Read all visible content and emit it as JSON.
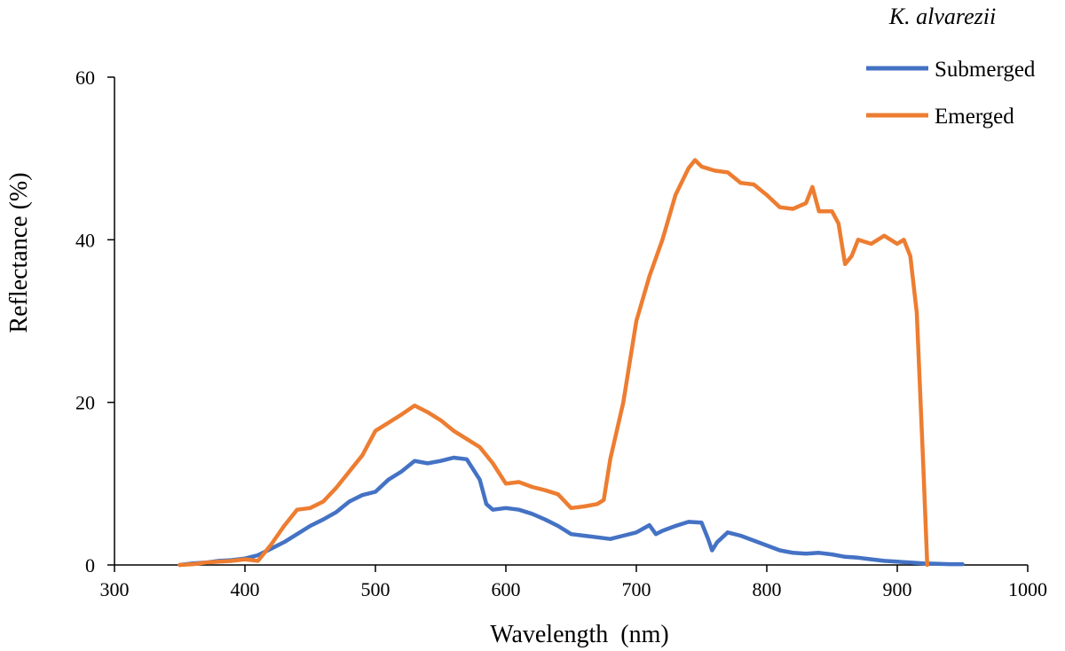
{
  "chart_data": {
    "type": "line",
    "title": "",
    "xlabel": "Wavelength  (nm)",
    "ylabel": "Reflectance (%)",
    "xlim": [
      300,
      1000
    ],
    "ylim": [
      0,
      60
    ],
    "xticks": [
      "300",
      "400",
      "500",
      "600",
      "700",
      "800",
      "900",
      "1000"
    ],
    "yticks": [
      "0",
      "20",
      "40",
      "60"
    ],
    "grid": false,
    "legend": {
      "title": "K. alvarezii",
      "position": "top-right"
    },
    "series": [
      {
        "name": "Submerged",
        "color": "#4472C4",
        "x": [
          350,
          360,
          370,
          380,
          390,
          400,
          410,
          420,
          430,
          440,
          450,
          460,
          470,
          480,
          490,
          500,
          510,
          520,
          530,
          540,
          550,
          560,
          570,
          580,
          585,
          590,
          600,
          610,
          620,
          630,
          640,
          650,
          660,
          670,
          680,
          690,
          700,
          710,
          715,
          720,
          730,
          740,
          750,
          755,
          758,
          762,
          770,
          780,
          790,
          800,
          810,
          820,
          830,
          840,
          850,
          860,
          870,
          880,
          890,
          900,
          910,
          920,
          930,
          940,
          950
        ],
        "y": [
          0,
          0.2,
          0.3,
          0.5,
          0.6,
          0.8,
          1.2,
          2.0,
          2.8,
          3.8,
          4.8,
          5.6,
          6.5,
          7.8,
          8.6,
          9.0,
          10.5,
          11.5,
          12.8,
          12.5,
          12.8,
          13.2,
          13.0,
          10.5,
          7.5,
          6.8,
          7.0,
          6.8,
          6.3,
          5.6,
          4.8,
          3.8,
          3.6,
          3.4,
          3.2,
          3.6,
          4.0,
          4.9,
          3.8,
          4.2,
          4.8,
          5.3,
          5.2,
          3.2,
          1.8,
          2.8,
          4.0,
          3.6,
          3.0,
          2.4,
          1.8,
          1.5,
          1.4,
          1.5,
          1.3,
          1.0,
          0.9,
          0.7,
          0.5,
          0.4,
          0.3,
          0.2,
          0.15,
          0.1,
          0.1
        ]
      },
      {
        "name": "Emerged",
        "color": "#ED7D31",
        "x": [
          350,
          360,
          370,
          380,
          390,
          400,
          405,
          410,
          420,
          430,
          440,
          450,
          460,
          470,
          480,
          490,
          500,
          510,
          520,
          530,
          540,
          550,
          560,
          570,
          580,
          590,
          600,
          610,
          620,
          630,
          640,
          650,
          660,
          670,
          675,
          680,
          690,
          700,
          710,
          720,
          730,
          740,
          745,
          750,
          760,
          770,
          780,
          790,
          800,
          810,
          820,
          830,
          835,
          840,
          850,
          855,
          860,
          865,
          870,
          880,
          890,
          900,
          905,
          910,
          915,
          920,
          923
        ],
        "y": [
          0,
          0.1,
          0.3,
          0.4,
          0.5,
          0.7,
          0.6,
          0.5,
          2.5,
          4.8,
          6.8,
          7.0,
          7.8,
          9.5,
          11.5,
          13.5,
          16.5,
          17.5,
          18.5,
          19.6,
          18.8,
          17.8,
          16.5,
          15.5,
          14.5,
          12.5,
          10.0,
          10.2,
          9.6,
          9.2,
          8.7,
          7.0,
          7.2,
          7.5,
          8.0,
          13.0,
          20.0,
          30.0,
          35.5,
          40.0,
          45.5,
          48.8,
          49.8,
          49.0,
          48.5,
          48.3,
          47.0,
          46.8,
          45.5,
          44.0,
          43.8,
          44.5,
          46.5,
          43.5,
          43.5,
          42.0,
          37.0,
          38.0,
          40.0,
          39.5,
          40.5,
          39.5,
          40.0,
          38.0,
          31.0,
          12.0,
          0
        ]
      }
    ]
  }
}
